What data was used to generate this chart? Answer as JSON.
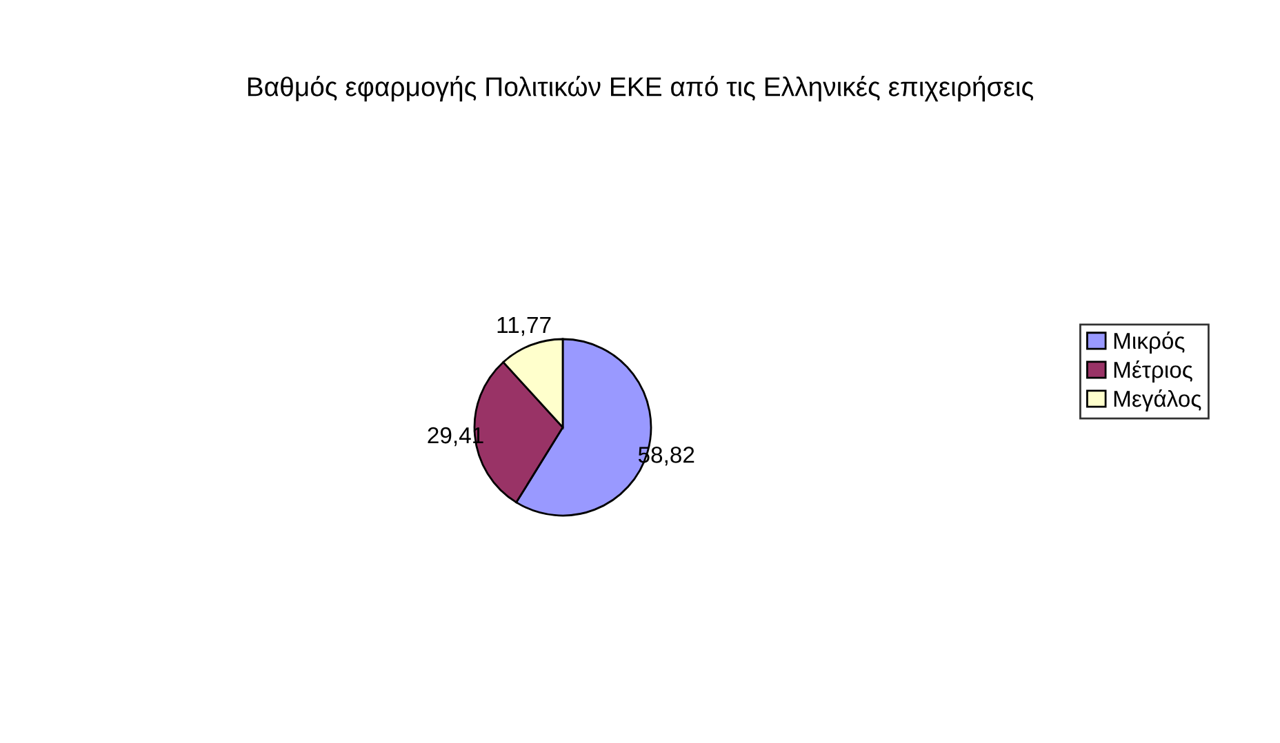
{
  "chart_data": {
    "type": "pie",
    "title": "Βαθμός εφαρμογής Πολιτικών ΕΚΕ από τις Ελληνικές επιχειρήσεις",
    "categories": [
      "Μικρός",
      "Μέτριος",
      "Μεγάλος"
    ],
    "values": [
      58.82,
      29.41,
      11.77
    ],
    "value_labels": [
      "58,82",
      "29,41",
      "11,77"
    ],
    "colors": [
      "#9999ff",
      "#993366",
      "#ffffcc"
    ],
    "legend": "right"
  }
}
